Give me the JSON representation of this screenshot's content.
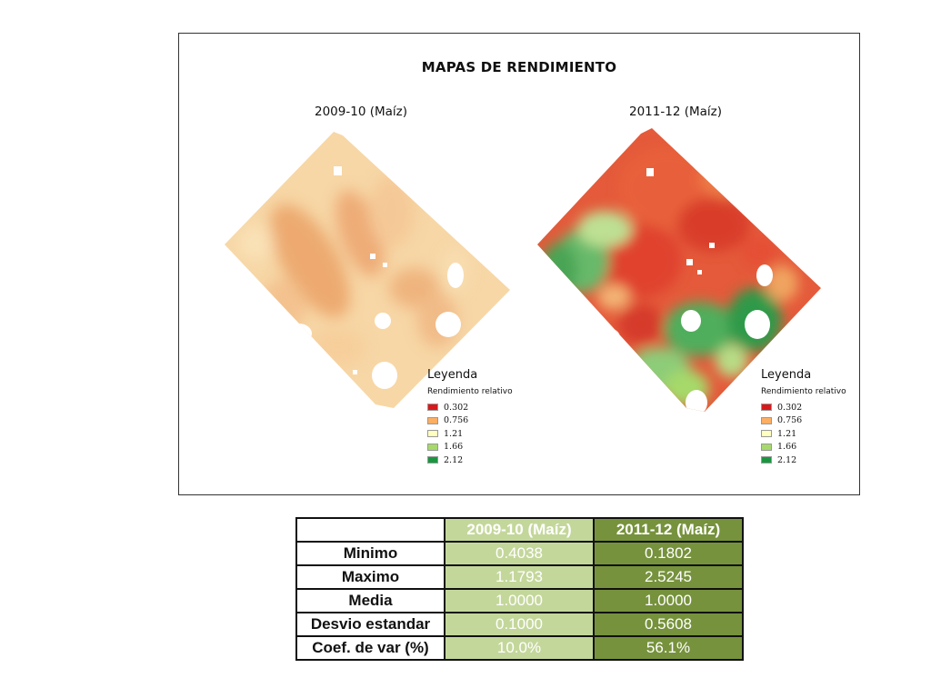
{
  "figure": {
    "title": "MAPAS DE RENDIMIENTO",
    "maps": [
      {
        "title": "2009-10 (Maíz)",
        "dominant": "light orange / beige"
      },
      {
        "title": "2011-12 (Maíz)",
        "dominant": "red and green mix"
      }
    ],
    "legend": {
      "heading": "Leyenda",
      "subtitle": "Rendimiento relativo",
      "items": [
        {
          "label": "0.302",
          "color": "#d7191c"
        },
        {
          "label": "0.756",
          "color": "#fdae61"
        },
        {
          "label": "1.21",
          "color": "#ffffbf"
        },
        {
          "label": "1.66",
          "color": "#a6d96a"
        },
        {
          "label": "2.12",
          "color": "#1a9641"
        }
      ]
    }
  },
  "table": {
    "headers": [
      "",
      "2009-10 (Maíz)",
      "2011-12 (Maíz)"
    ],
    "rows": [
      {
        "label": "Minimo",
        "v1": "0.4038",
        "v2": "0.1802"
      },
      {
        "label": "Maximo",
        "v1": "1.1793",
        "v2": "2.5245"
      },
      {
        "label": "Media",
        "v1": "1.0000",
        "v2": "1.0000"
      },
      {
        "label": "Desvio estandar",
        "v1": "0.1000",
        "v2": "0.5608"
      },
      {
        "label": "Coef. de var (%)",
        "v1": "10.0%",
        "v2": "56.1%"
      }
    ],
    "colors": {
      "col1": "#c4d79b",
      "col2": "#76923c"
    }
  }
}
